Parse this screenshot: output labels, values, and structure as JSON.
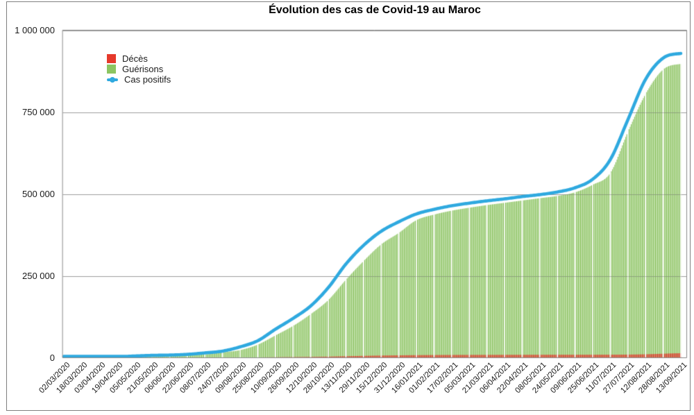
{
  "chart_data": {
    "type": "bar",
    "title": "Évolution des cas de Covid-19 au Maroc",
    "background": "#ffffff",
    "grid": true,
    "legend_position": "top-left-inside",
    "categories": [
      "02/03/2020",
      "18/03/2020",
      "03/04/2020",
      "19/04/2020",
      "05/05/2020",
      "21/05/2020",
      "06/06/2020",
      "22/06/2020",
      "08/07/2020",
      "24/07/2020",
      "09/08/2020",
      "25/08/2020",
      "10/09/2020",
      "26/09/2020",
      "12/10/2020",
      "28/10/2020",
      "13/11/2020",
      "29/11/2020",
      "15/12/2020",
      "31/12/2020",
      "16/01/2021",
      "01/02/2021",
      "17/02/2021",
      "05/03/2021",
      "21/03/2021",
      "06/04/2021",
      "22/04/2021",
      "08/05/2021",
      "24/05/2021",
      "09/06/2021",
      "25/06/2021",
      "11/07/2021",
      "27/07/2021",
      "12/08/2021",
      "28/08/2021",
      "13/09/2021"
    ],
    "x_axis": {
      "tick_interval_days": 16,
      "label_rotation_deg": 45
    },
    "y_axis": {
      "min": 0,
      "max": 1000000,
      "tick_interval": 250000,
      "ticks": [
        {
          "value": 0,
          "label": "0"
        },
        {
          "value": 250000,
          "label": "250 000"
        },
        {
          "value": 500000,
          "label": "500 000"
        },
        {
          "value": 750000,
          "label": "750 000"
        },
        {
          "value": 1000000,
          "label": "1 000 000"
        }
      ]
    },
    "series": [
      {
        "name": "Décès",
        "kind": "bar",
        "color": "#e6392b",
        "color_alt": "#d63429",
        "values": [
          0,
          2,
          48,
          141,
          181,
          196,
          208,
          214,
          240,
          313,
          498,
          1007,
          1578,
          2041,
          2605,
          3445,
          4749,
          5739,
          6711,
          7388,
          7911,
          8287,
          8517,
          8673,
          8757,
          8867,
          8988,
          9079,
          9141,
          9180,
          9236,
          9346,
          9654,
          10600,
          12300,
          13900
        ]
      },
      {
        "name": "Guérisons",
        "kind": "bar",
        "color": "#8cc561",
        "color_alt": "#80bc52",
        "values": [
          0,
          2,
          57,
          327,
          1838,
          4254,
          7186,
          8455,
          10001,
          16438,
          23346,
          40000,
          68000,
          97000,
          133000,
          176000,
          238000,
          295000,
          346000,
          381000,
          420000,
          437000,
          449000,
          458000,
          466000,
          473000,
          480000,
          487000,
          494000,
          505000,
          528000,
          564000,
          690000,
          805000,
          880000,
          897000
        ]
      },
      {
        "name": "Cas positifs",
        "kind": "line",
        "color": "#2fa9df",
        "values": [
          1,
          61,
          791,
          2855,
          5219,
          7211,
          8151,
          10344,
          14771,
          20278,
          33237,
          52000,
          87000,
          120000,
          158000,
          214000,
          286000,
          343000,
          386000,
          415000,
          439000,
          453000,
          464000,
          472000,
          479000,
          485000,
          492000,
          498000,
          506000,
          519000,
          545000,
          605000,
          727000,
          850000,
          915000,
          929000
        ]
      }
    ],
    "colors": {
      "grid_line": "#b3b3b3",
      "plot_border": "#8a8a8a",
      "outer_border": "#7f7f7f",
      "text": "#1a1a1a"
    }
  }
}
